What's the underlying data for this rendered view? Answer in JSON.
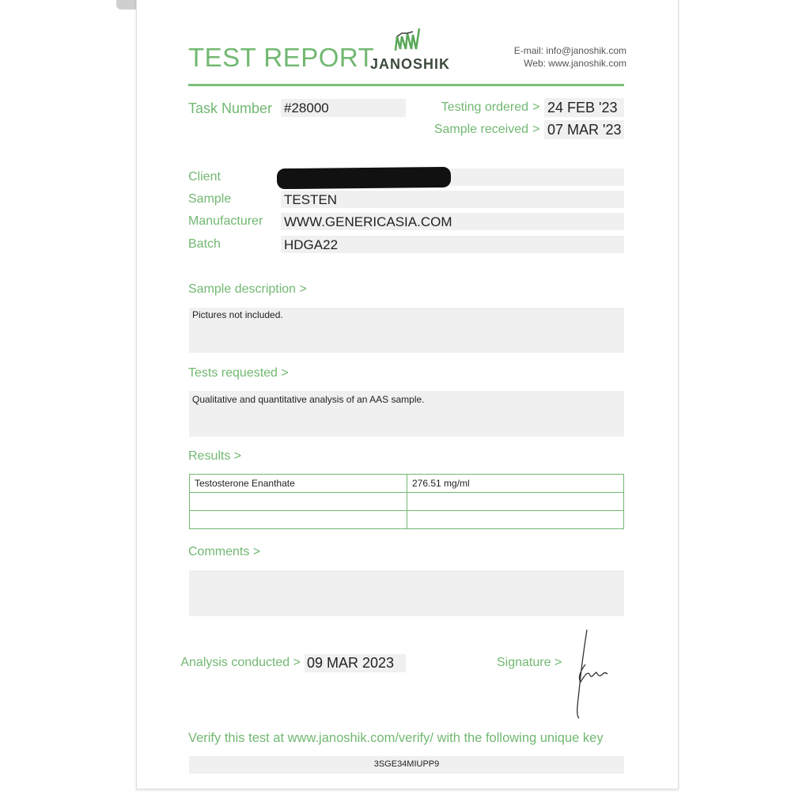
{
  "header": {
    "title": "TEST REPORT",
    "logo_text": "JANOSHIK",
    "email": "E-mail: info@janoshik.com",
    "web": "Web: www.janoshik.com"
  },
  "task": {
    "label": "Task Number",
    "value": "#28000"
  },
  "dates": {
    "ordered_label": "Testing ordered",
    "ordered_value": "24 FEB '23",
    "received_label": "Sample received",
    "received_value": "07 MAR '23",
    "arrow": ">"
  },
  "info": [
    {
      "label": "Client",
      "value": ""
    },
    {
      "label": "Sample",
      "value": "TESTEN"
    },
    {
      "label": "Manufacturer",
      "value": "WWW.GENERICASIA.COM"
    },
    {
      "label": "Batch",
      "value": "HDGA22"
    }
  ],
  "sample_description": {
    "label": "Sample description >",
    "text": "Pictures not included."
  },
  "tests_requested": {
    "label": "Tests requested >",
    "text": "Qualitative and quantitative analysis of an AAS sample."
  },
  "results": {
    "label": "Results >",
    "rows": [
      [
        "Testosterone Enanthate",
        "276.51 mg/ml"
      ],
      [
        "",
        ""
      ],
      [
        "",
        ""
      ]
    ]
  },
  "comments": {
    "label": "Comments >",
    "text": ""
  },
  "analysis": {
    "label": "Analysis conducted >",
    "value": "09 MAR 2023"
  },
  "signature": {
    "label": "Signature >"
  },
  "verify": {
    "text": "Verify this test at www.janoshik.com/verify/ with the following unique key",
    "key": "3SGE34MIUPP9"
  },
  "colors": {
    "accent": "#72b872",
    "field": "#f0f0f0"
  }
}
